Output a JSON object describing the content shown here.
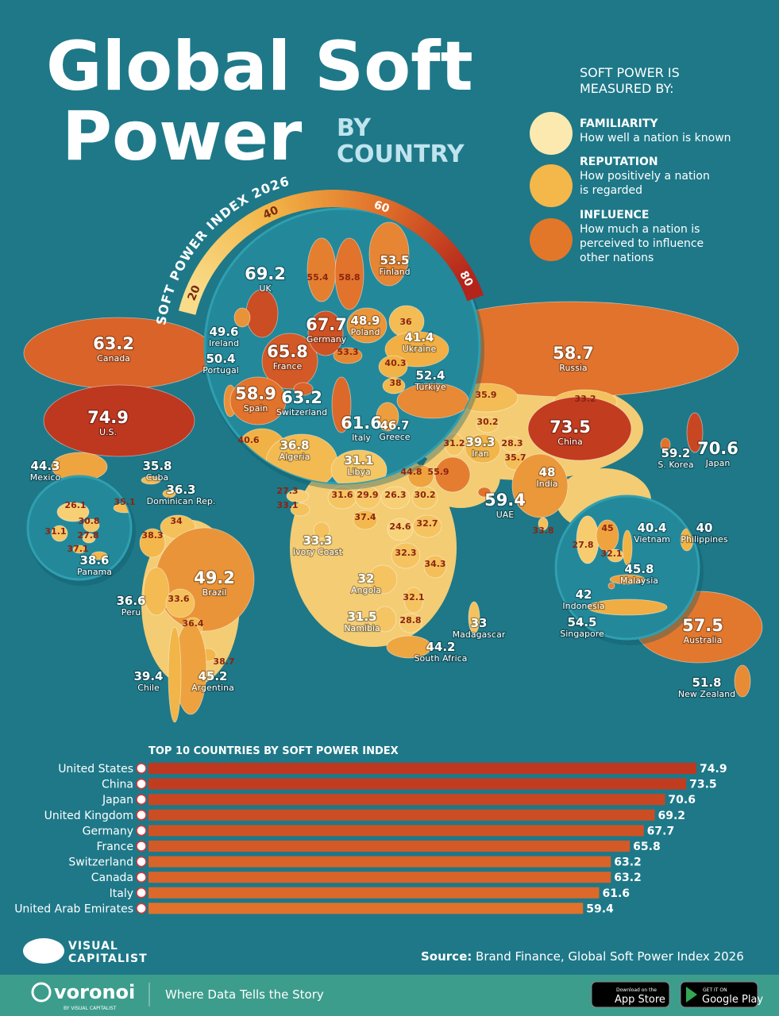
{
  "header": {
    "title_line1": "Global Soft",
    "title_line2": "Power",
    "subtitle_line1": "BY",
    "subtitle_line2": "COUNTRY"
  },
  "measures": {
    "heading_line1": "SOFT POWER IS",
    "heading_line2": "MEASURED BY:",
    "items": [
      {
        "name": "FAMILIARITY",
        "lines": [
          "How well a nation is known"
        ]
      },
      {
        "name": "REPUTATION",
        "lines": [
          "How positively a nation",
          "is regarded"
        ]
      },
      {
        "name": "INFLUENCE",
        "lines": [
          "How much a nation is",
          "perceived to influence",
          "other nations"
        ]
      }
    ]
  },
  "chart_data": [
    {
      "type": "map",
      "title": "SOFT POWER INDEX 2026",
      "color_scale": {
        "range": [
          20,
          80
        ],
        "ticks": [
          20,
          40,
          60,
          80
        ],
        "colors": [
          "#f9dc8a",
          "#f2b446",
          "#e06f2a",
          "#b3241b"
        ]
      },
      "categories": [
        "Russia",
        "Canada",
        "U.S.",
        "Mexico",
        "Cuba",
        "Dominican Rep.",
        null,
        null,
        "Brazil",
        "Peru",
        null,
        null,
        null,
        "Argentina",
        "Chile",
        null,
        null,
        null,
        null,
        null,
        null,
        "Ivory Coast",
        null,
        null,
        null,
        null,
        null,
        "Angola",
        null,
        "Namibia",
        null,
        "Madagascar",
        "South Africa",
        null,
        null,
        "UAE",
        null,
        "Iran",
        null,
        null,
        null,
        null,
        null,
        "China",
        "India",
        null,
        "S. Korea",
        "Japan",
        "Australia",
        "New Zealand",
        "UK",
        "Ireland",
        "Portugal",
        "France",
        "Germany",
        "Poland",
        "Finland",
        null,
        null,
        null,
        "Ukraine",
        null,
        null,
        null,
        "Spain",
        "Switzerland",
        "Italy",
        "Greece",
        "Türkiye",
        null,
        "Algeria",
        "Libya",
        null,
        null,
        null,
        null,
        null,
        null,
        "Panama",
        null,
        null,
        null,
        "Vietnam",
        "Philippines",
        "Malaysia",
        "Indonesia",
        "Singapore"
      ],
      "values": [
        58.7,
        63.2,
        74.9,
        44.3,
        35.8,
        36.3,
        34,
        38.3,
        49.2,
        36.6,
        33.6,
        36.4,
        38.7,
        45.2,
        39.4,
        27.3,
        33.1,
        31.6,
        29.9,
        26.3,
        30.2,
        33.3,
        37.4,
        24.6,
        32.7,
        32.3,
        34.3,
        32,
        32.1,
        31.5,
        28.8,
        33,
        44.2,
        44.8,
        55.9,
        59.4,
        31.2,
        39.3,
        28.3,
        35.7,
        30.2,
        35.9,
        33.2,
        73.5,
        48,
        33.8,
        59.2,
        70.6,
        57.5,
        51.8,
        69.2,
        49.6,
        50.4,
        65.8,
        67.7,
        48.9,
        53.5,
        55.4,
        58.8,
        36,
        41.4,
        53.3,
        40.3,
        38,
        58.9,
        63.2,
        61.6,
        46.7,
        52.4,
        40.6,
        36.8,
        31.1,
        26.1,
        35.1,
        30.8,
        31.1,
        27.8,
        37.1,
        38.6,
        27.8,
        45,
        32.1,
        40.4,
        40,
        45.8,
        42,
        54.5
      ]
    },
    {
      "type": "bar",
      "title": "TOP 10 COUNTRIES BY SOFT POWER INDEX",
      "categories": [
        "United States",
        "China",
        "Japan",
        "United Kingdom",
        "Germany",
        "France",
        "Switzerland",
        "Canada",
        "Italy",
        "United Arab Emirates"
      ],
      "values": [
        74.9,
        73.5,
        70.6,
        69.2,
        67.7,
        65.8,
        63.2,
        63.2,
        61.6,
        59.4
      ],
      "xlim": [
        0,
        80
      ]
    }
  ],
  "source": {
    "label": "Source:",
    "text": "Brand Finance, Global Soft Power Index 2026"
  },
  "logo": {
    "line1": "VISUAL",
    "line2": "CAPITALIST"
  },
  "footer": {
    "brand": "voronoi",
    "brand_sub": "BY VISUAL CAPITALIST",
    "tagline": "Where Data Tells the Story",
    "app_store_small": "Download on the",
    "app_store": "App Store",
    "google_small": "GET IT ON",
    "google": "Google Play"
  }
}
